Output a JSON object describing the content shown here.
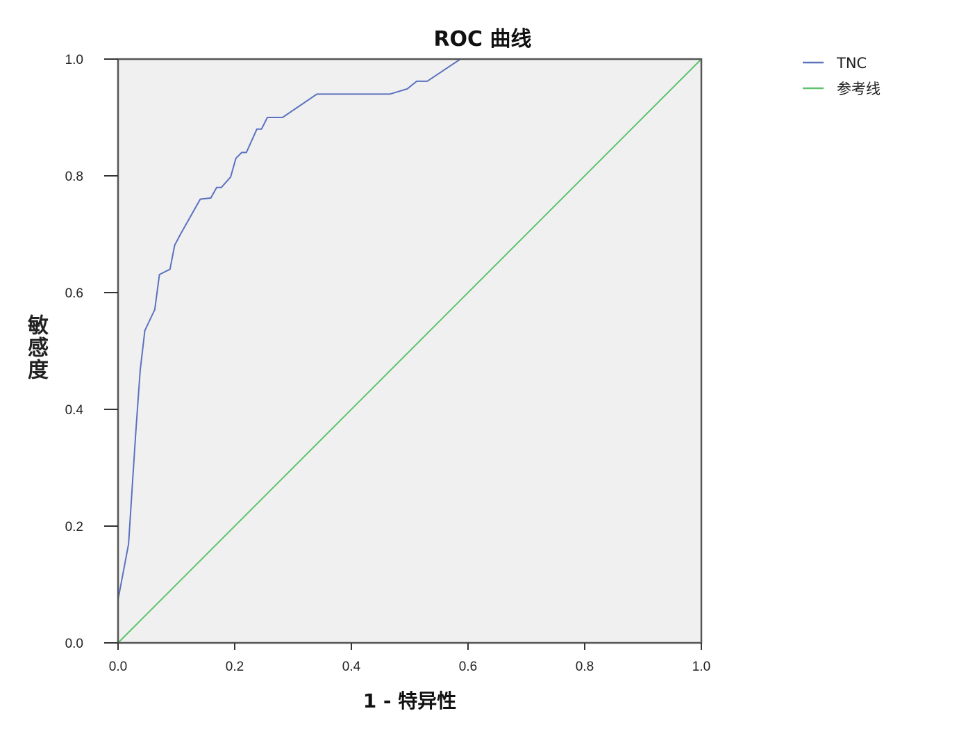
{
  "chart_data": {
    "type": "line",
    "title": "ROC 曲线",
    "xlabel": "1 - 特异性",
    "ylabel": "敏感度",
    "xlim": [
      0,
      1
    ],
    "ylim": [
      0,
      1
    ],
    "xticks": [
      "0.0",
      "0.2",
      "0.4",
      "0.6",
      "0.8",
      "1.0"
    ],
    "yticks": [
      "0.0",
      "0.2",
      "0.4",
      "0.6",
      "0.8",
      "1.0"
    ],
    "grid": false,
    "plot_background": "#f0f0f0",
    "legend_position": "right-top",
    "series": [
      {
        "name": "TNC",
        "color": "#5b72c0",
        "x": [
          0,
          0.018,
          0.03,
          0.038,
          0.046,
          0.063,
          0.071,
          0.089,
          0.097,
          0.107,
          0.141,
          0.159,
          0.169,
          0.177,
          0.193,
          0.202,
          0.212,
          0.22,
          0.238,
          0.246,
          0.256,
          0.282,
          0.341,
          0.466,
          0.496,
          0.512,
          0.53,
          0.587,
          1.0
        ],
        "y": [
          0.074,
          0.169,
          0.355,
          0.467,
          0.535,
          0.571,
          0.631,
          0.64,
          0.681,
          0.7,
          0.76,
          0.762,
          0.78,
          0.78,
          0.798,
          0.83,
          0.84,
          0.84,
          0.88,
          0.88,
          0.9,
          0.9,
          0.94,
          0.94,
          0.949,
          0.962,
          0.962,
          1.0,
          1.0
        ]
      },
      {
        "name": "参考线",
        "color": "#5cc46a",
        "x": [
          0,
          1
        ],
        "y": [
          0,
          1
        ]
      }
    ]
  }
}
